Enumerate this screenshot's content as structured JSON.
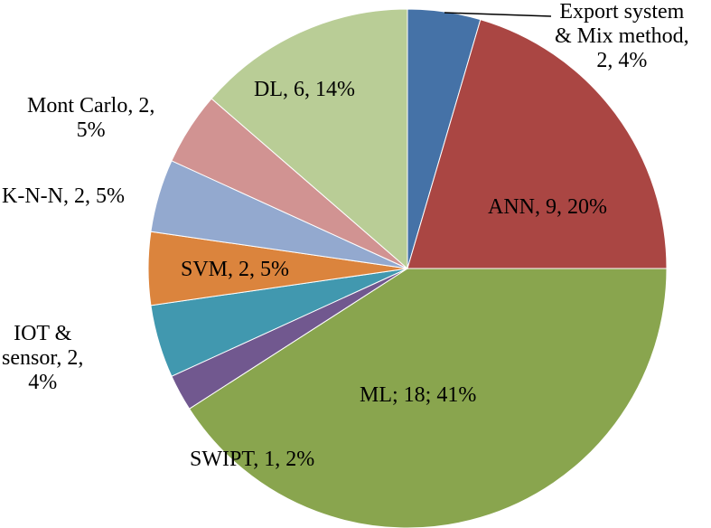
{
  "chart_data": {
    "type": "pie",
    "title": "",
    "start": "top",
    "direction": "clockwise",
    "slices": [
      {
        "name": "Export system & Mix method",
        "value": 2,
        "percent": 4,
        "label_lines": [
          "Export system",
          "& Mix method,",
          "2, 4%"
        ],
        "color": "#4572A7"
      },
      {
        "name": "ANN",
        "value": 9,
        "percent": 20,
        "label_lines": [
          "ANN, 9, 20%"
        ],
        "color": "#AA4643"
      },
      {
        "name": "ML",
        "value": 18,
        "percent": 41,
        "label_lines": [
          "ML; 18; 41%"
        ],
        "color": "#89A54E"
      },
      {
        "name": "SWIPT",
        "value": 1,
        "percent": 2,
        "label_lines": [
          "SWIPT, 1, 2%"
        ],
        "color": "#71588F"
      },
      {
        "name": "IOT & sensor",
        "value": 2,
        "percent": 4,
        "label_lines": [
          "IOT &",
          "sensor, 2,",
          "4%"
        ],
        "color": "#4198AF"
      },
      {
        "name": "SVM",
        "value": 2,
        "percent": 5,
        "label_lines": [
          "SVM, 2, 5%"
        ],
        "color": "#DB843D"
      },
      {
        "name": "K-N-N",
        "value": 2,
        "percent": 5,
        "label_lines": [
          "K-N-N, 2, 5%"
        ],
        "color": "#93A9CF"
      },
      {
        "name": "Mont Carlo",
        "value": 2,
        "percent": 5,
        "label_lines": [
          "Mont Carlo, 2,",
          "5%"
        ],
        "color": "#D19392"
      },
      {
        "name": "DL",
        "value": 6,
        "percent": 14,
        "label_lines": [
          "DL, 6, 14%"
        ],
        "color": "#B9CD96"
      }
    ]
  }
}
